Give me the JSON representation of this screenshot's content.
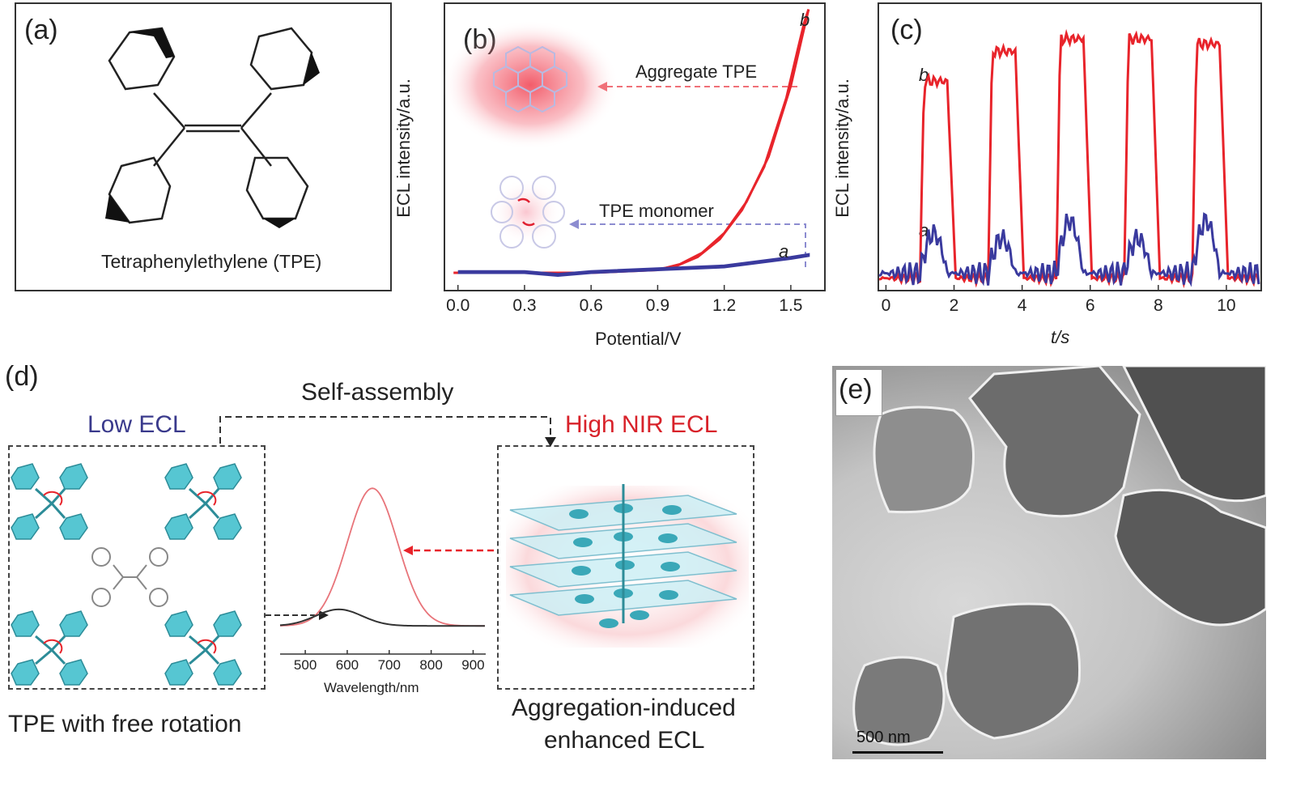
{
  "panels": {
    "a": {
      "label": "(a)",
      "caption": "Tetraphenylethylene (TPE)"
    },
    "b": {
      "label": "(b)",
      "annotation_aggregate": "Aggregate TPE",
      "annotation_monomer": "TPE monomer",
      "curve_label_a": "a",
      "curve_label_b": "b"
    },
    "c": {
      "label": "(c)",
      "curve_label_a": "a",
      "curve_label_b": "b"
    },
    "d": {
      "label": "(d)",
      "self_assembly": "Self-assembly",
      "low_ecl": "Low ECL",
      "high_nir_ecl": "High NIR ECL",
      "left_caption": "TPE with free rotation",
      "right_caption_line1": "Aggregation-induced",
      "right_caption_line2": "enhanced ECL"
    },
    "e": {
      "label": "(e)",
      "scale_bar": "500 nm"
    }
  },
  "colors": {
    "red": "#e8242b",
    "blue": "#3a3a9e",
    "cyan": "#4fc3cf",
    "low_ecl_text": "#3a3a8c",
    "high_ecl_text": "#d8222a"
  },
  "chart_data": [
    {
      "id": "b",
      "type": "line",
      "xlabel": "Potential/V",
      "ylabel": "ECL intensity/a.u.",
      "xticks": [
        "0.0",
        "0.3",
        "0.6",
        "0.9",
        "1.2",
        "1.5"
      ],
      "xlim": [
        -0.05,
        1.65
      ],
      "ylim": [
        0,
        1
      ],
      "series": [
        {
          "name": "b",
          "color": "#e8242b",
          "x": [
            0.0,
            0.3,
            0.6,
            0.9,
            1.0,
            1.1,
            1.2,
            1.3,
            1.4,
            1.5,
            1.55,
            1.58
          ],
          "y": [
            0.02,
            0.02,
            0.02,
            0.03,
            0.05,
            0.09,
            0.16,
            0.27,
            0.43,
            0.68,
            0.85,
            0.95
          ]
        },
        {
          "name": "a",
          "color": "#3a3a9e",
          "x": [
            0.0,
            0.3,
            0.45,
            0.6,
            0.9,
            1.2,
            1.5,
            1.58
          ],
          "y": [
            0.02,
            0.02,
            0.01,
            0.02,
            0.03,
            0.04,
            0.07,
            0.08
          ]
        }
      ]
    },
    {
      "id": "c",
      "type": "line",
      "xlabel": "t/s",
      "ylabel": "ECL intensity/a.u.",
      "xticks": [
        "0",
        "2",
        "4",
        "6",
        "8",
        "10"
      ],
      "xlim": [
        -0.2,
        11
      ],
      "ylim": [
        0,
        1
      ],
      "series": [
        {
          "name": "b",
          "color": "#e8242b",
          "pulses": [
            [
              1.0,
              1.8,
              0.83
            ],
            [
              3.0,
              3.8,
              0.95
            ],
            [
              5.0,
              5.8,
              1.0
            ],
            [
              7.0,
              7.8,
              1.0
            ],
            [
              9.0,
              9.8,
              0.98
            ]
          ],
          "baseline": 0.04
        },
        {
          "name": "a",
          "color": "#3a3a9e",
          "pulses": [
            [
              1.0,
              1.8,
              0.22
            ],
            [
              3.0,
              3.8,
              0.2
            ],
            [
              5.0,
              5.8,
              0.27
            ],
            [
              7.0,
              7.8,
              0.2
            ],
            [
              9.0,
              9.8,
              0.27
            ]
          ],
          "baseline": 0.06
        }
      ]
    },
    {
      "id": "d-inset",
      "type": "line",
      "xlabel": "Wavelength/nm",
      "xticks": [
        "500",
        "600",
        "700",
        "800",
        "900"
      ],
      "xlim": [
        440,
        930
      ],
      "ylim": [
        0,
        1
      ],
      "series": [
        {
          "color": "#e8747a",
          "peak": 660,
          "height": 1.0,
          "base": 0.04
        },
        {
          "color": "#333333",
          "peak": 580,
          "height": 0.12,
          "base": 0.04
        }
      ]
    }
  ]
}
